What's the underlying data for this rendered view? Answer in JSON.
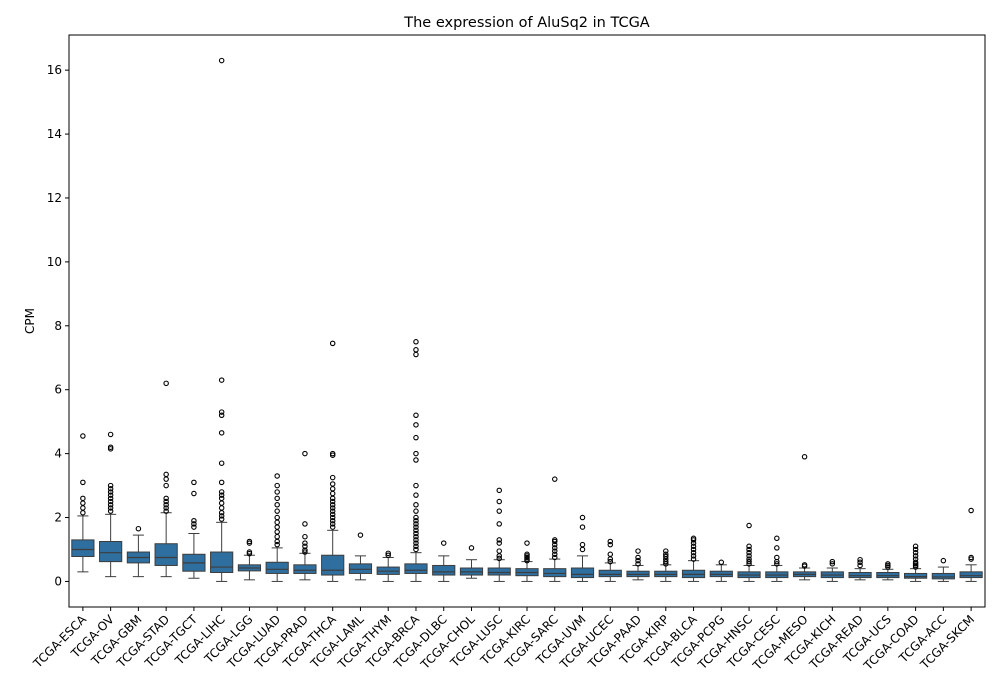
{
  "chart_data": {
    "type": "boxplot",
    "title": "The expression of AluSq2 in TCGA",
    "xlabel": "",
    "ylabel": "CPM",
    "ylim": [
      -0.8,
      17.1
    ],
    "yticks": [
      0,
      2,
      4,
      6,
      8,
      10,
      12,
      14,
      16
    ],
    "grid": false,
    "box_color": "#2f6f9f",
    "categories": [
      "TCGA-ESCA",
      "TCGA-OV",
      "TCGA-GBM",
      "TCGA-STAD",
      "TCGA-TGCT",
      "TCGA-LIHC",
      "TCGA-LGG",
      "TCGA-LUAD",
      "TCGA-PRAD",
      "TCGA-THCA",
      "TCGA-LAML",
      "TCGA-THYM",
      "TCGA-BRCA",
      "TCGA-DLBC",
      "TCGA-CHOL",
      "TCGA-LUSC",
      "TCGA-KIRC",
      "TCGA-SARC",
      "TCGA-UVM",
      "TCGA-UCEC",
      "TCGA-PAAD",
      "TCGA-KIRP",
      "TCGA-BLCA",
      "TCGA-PCPG",
      "TCGA-HNSC",
      "TCGA-CESC",
      "TCGA-MESO",
      "TCGA-KICH",
      "TCGA-READ",
      "TCGA-UCS",
      "TCGA-COAD",
      "TCGA-ACC",
      "TCGA-SKCM"
    ],
    "boxes": [
      {
        "whislo": 0.3,
        "q1": 0.78,
        "med": 1.0,
        "q3": 1.3,
        "whishi": 2.05,
        "fliers": [
          2.15,
          2.3,
          2.45,
          2.6,
          3.1,
          4.55
        ]
      },
      {
        "whislo": 0.15,
        "q1": 0.62,
        "med": 0.9,
        "q3": 1.25,
        "whishi": 2.1,
        "fliers": [
          2.2,
          2.3,
          2.4,
          2.5,
          2.6,
          2.7,
          2.8,
          2.9,
          3.0,
          4.15,
          4.2,
          4.6
        ]
      },
      {
        "whislo": 0.15,
        "q1": 0.58,
        "med": 0.75,
        "q3": 0.92,
        "whishi": 1.45,
        "fliers": [
          1.65
        ]
      },
      {
        "whislo": 0.15,
        "q1": 0.5,
        "med": 0.75,
        "q3": 1.18,
        "whishi": 2.15,
        "fliers": [
          2.2,
          2.3,
          2.4,
          2.5,
          2.6,
          3.0,
          3.2,
          3.35,
          6.2
        ]
      },
      {
        "whislo": 0.1,
        "q1": 0.32,
        "med": 0.58,
        "q3": 0.85,
        "whishi": 1.5,
        "fliers": [
          1.7,
          1.8,
          1.9,
          2.75,
          3.1
        ]
      },
      {
        "whislo": 0.0,
        "q1": 0.28,
        "med": 0.45,
        "q3": 0.92,
        "whishi": 1.85,
        "fliers": [
          1.95,
          2.05,
          2.15,
          2.3,
          2.45,
          2.6,
          2.7,
          2.8,
          3.1,
          3.7,
          4.65,
          5.2,
          5.3,
          6.3,
          16.3
        ]
      },
      {
        "whislo": 0.05,
        "q1": 0.33,
        "med": 0.42,
        "q3": 0.52,
        "whishi": 0.82,
        "fliers": [
          0.87,
          0.92,
          1.2,
          1.25
        ]
      },
      {
        "whislo": 0.0,
        "q1": 0.25,
        "med": 0.38,
        "q3": 0.6,
        "whishi": 1.05,
        "fliers": [
          1.15,
          1.25,
          1.4,
          1.55,
          1.7,
          1.85,
          2.0,
          2.2,
          2.4,
          2.6,
          2.8,
          3.0,
          3.3
        ]
      },
      {
        "whislo": 0.05,
        "q1": 0.25,
        "med": 0.35,
        "q3": 0.52,
        "whishi": 0.88,
        "fliers": [
          0.92,
          0.98,
          1.1,
          1.2,
          1.4,
          1.8,
          4.0
        ]
      },
      {
        "whislo": 0.0,
        "q1": 0.2,
        "med": 0.35,
        "q3": 0.82,
        "whishi": 1.6,
        "fliers": [
          1.7,
          1.8,
          1.9,
          2.0,
          2.1,
          2.2,
          2.3,
          2.4,
          2.5,
          2.6,
          2.75,
          2.9,
          3.05,
          3.25,
          3.95,
          4.0,
          7.45
        ]
      },
      {
        "whislo": 0.05,
        "q1": 0.25,
        "med": 0.38,
        "q3": 0.55,
        "whishi": 0.8,
        "fliers": [
          1.45
        ]
      },
      {
        "whislo": 0.0,
        "q1": 0.22,
        "med": 0.32,
        "q3": 0.45,
        "whishi": 0.75,
        "fliers": [
          0.82,
          0.88
        ]
      },
      {
        "whislo": 0.0,
        "q1": 0.25,
        "med": 0.35,
        "q3": 0.55,
        "whishi": 0.9,
        "fliers": [
          1.0,
          1.1,
          1.2,
          1.3,
          1.4,
          1.5,
          1.6,
          1.7,
          1.8,
          1.9,
          2.0,
          2.2,
          2.4,
          2.7,
          3.0,
          3.8,
          4.0,
          4.5,
          4.9,
          5.2,
          7.1,
          7.25,
          7.5
        ]
      },
      {
        "whislo": 0.0,
        "q1": 0.2,
        "med": 0.3,
        "q3": 0.5,
        "whishi": 0.8,
        "fliers": [
          1.2
        ]
      },
      {
        "whislo": 0.1,
        "q1": 0.2,
        "med": 0.3,
        "q3": 0.42,
        "whishi": 0.68,
        "fliers": [
          1.05
        ]
      },
      {
        "whislo": 0.0,
        "q1": 0.2,
        "med": 0.28,
        "q3": 0.42,
        "whishi": 0.68,
        "fliers": [
          0.72,
          0.8,
          0.95,
          1.2,
          1.3,
          1.8,
          2.2,
          2.5,
          2.85
        ]
      },
      {
        "whislo": 0.0,
        "q1": 0.18,
        "med": 0.28,
        "q3": 0.4,
        "whishi": 0.62,
        "fliers": [
          0.65,
          0.7,
          0.75,
          0.8,
          0.85,
          1.2
        ]
      },
      {
        "whislo": 0.0,
        "q1": 0.15,
        "med": 0.25,
        "q3": 0.4,
        "whishi": 0.7,
        "fliers": [
          0.75,
          0.85,
          0.95,
          1.05,
          1.15,
          1.25,
          1.3,
          3.2
        ]
      },
      {
        "whislo": 0.0,
        "q1": 0.12,
        "med": 0.22,
        "q3": 0.42,
        "whishi": 0.8,
        "fliers": [
          1.0,
          1.15,
          1.7,
          2.0
        ]
      },
      {
        "whislo": 0.0,
        "q1": 0.15,
        "med": 0.22,
        "q3": 0.35,
        "whishi": 0.58,
        "fliers": [
          0.62,
          0.7,
          0.85,
          1.15,
          1.25
        ]
      },
      {
        "whislo": 0.05,
        "q1": 0.15,
        "med": 0.22,
        "q3": 0.32,
        "whishi": 0.5,
        "fliers": [
          0.55,
          0.65,
          0.75,
          0.95
        ]
      },
      {
        "whislo": 0.0,
        "q1": 0.15,
        "med": 0.22,
        "q3": 0.32,
        "whishi": 0.52,
        "fliers": [
          0.55,
          0.62,
          0.7,
          0.78,
          0.85,
          0.95
        ]
      },
      {
        "whislo": 0.0,
        "q1": 0.12,
        "med": 0.22,
        "q3": 0.35,
        "whishi": 0.65,
        "fliers": [
          0.7,
          0.8,
          0.9,
          1.0,
          1.1,
          1.2,
          1.3,
          1.35
        ]
      },
      {
        "whislo": 0.0,
        "q1": 0.15,
        "med": 0.22,
        "q3": 0.32,
        "whishi": 0.52,
        "fliers": [
          0.6
        ]
      },
      {
        "whislo": 0.0,
        "q1": 0.12,
        "med": 0.2,
        "q3": 0.3,
        "whishi": 0.5,
        "fliers": [
          0.55,
          0.62,
          0.7,
          0.8,
          0.9,
          1.0,
          1.1,
          1.75
        ]
      },
      {
        "whislo": 0.0,
        "q1": 0.12,
        "med": 0.2,
        "q3": 0.3,
        "whishi": 0.5,
        "fliers": [
          0.55,
          0.62,
          0.75,
          1.05,
          1.35
        ]
      },
      {
        "whislo": 0.05,
        "q1": 0.15,
        "med": 0.22,
        "q3": 0.3,
        "whishi": 0.42,
        "fliers": [
          0.48,
          0.52,
          3.9
        ]
      },
      {
        "whislo": 0.0,
        "q1": 0.12,
        "med": 0.2,
        "q3": 0.3,
        "whishi": 0.42,
        "fliers": [
          0.55,
          0.62
        ]
      },
      {
        "whislo": 0.05,
        "q1": 0.12,
        "med": 0.18,
        "q3": 0.28,
        "whishi": 0.4,
        "fliers": [
          0.5,
          0.6,
          0.68
        ]
      },
      {
        "whislo": 0.05,
        "q1": 0.12,
        "med": 0.18,
        "q3": 0.28,
        "whishi": 0.38,
        "fliers": [
          0.45,
          0.5,
          0.55
        ]
      },
      {
        "whislo": 0.0,
        "q1": 0.1,
        "med": 0.15,
        "q3": 0.25,
        "whishi": 0.4,
        "fliers": [
          0.45,
          0.5,
          0.55,
          0.6,
          0.7,
          0.8,
          0.9,
          1.0,
          1.1
        ]
      },
      {
        "whislo": 0.0,
        "q1": 0.08,
        "med": 0.14,
        "q3": 0.25,
        "whishi": 0.45,
        "fliers": [
          0.65
        ]
      },
      {
        "whislo": 0.0,
        "q1": 0.12,
        "med": 0.18,
        "q3": 0.3,
        "whishi": 0.52,
        "fliers": [
          0.7,
          0.75,
          2.22
        ]
      }
    ]
  }
}
